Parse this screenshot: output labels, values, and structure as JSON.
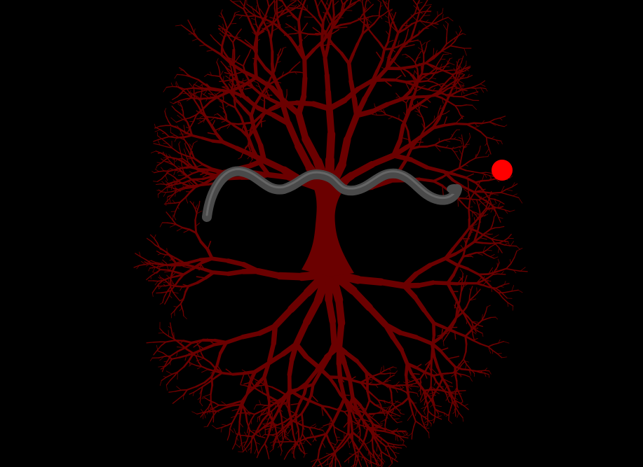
{
  "scene": {
    "subject": "tree-of-life-with-serpent",
    "colors": {
      "background": "#000000",
      "tree": "#6b0000",
      "serpent": "#4a4a4a",
      "serpent_highlight": "#7a7a7a",
      "fruit": "#ff0000"
    },
    "elements": [
      "canopy-branches",
      "trunk",
      "root-system",
      "serpent",
      "red-fruit"
    ]
  }
}
